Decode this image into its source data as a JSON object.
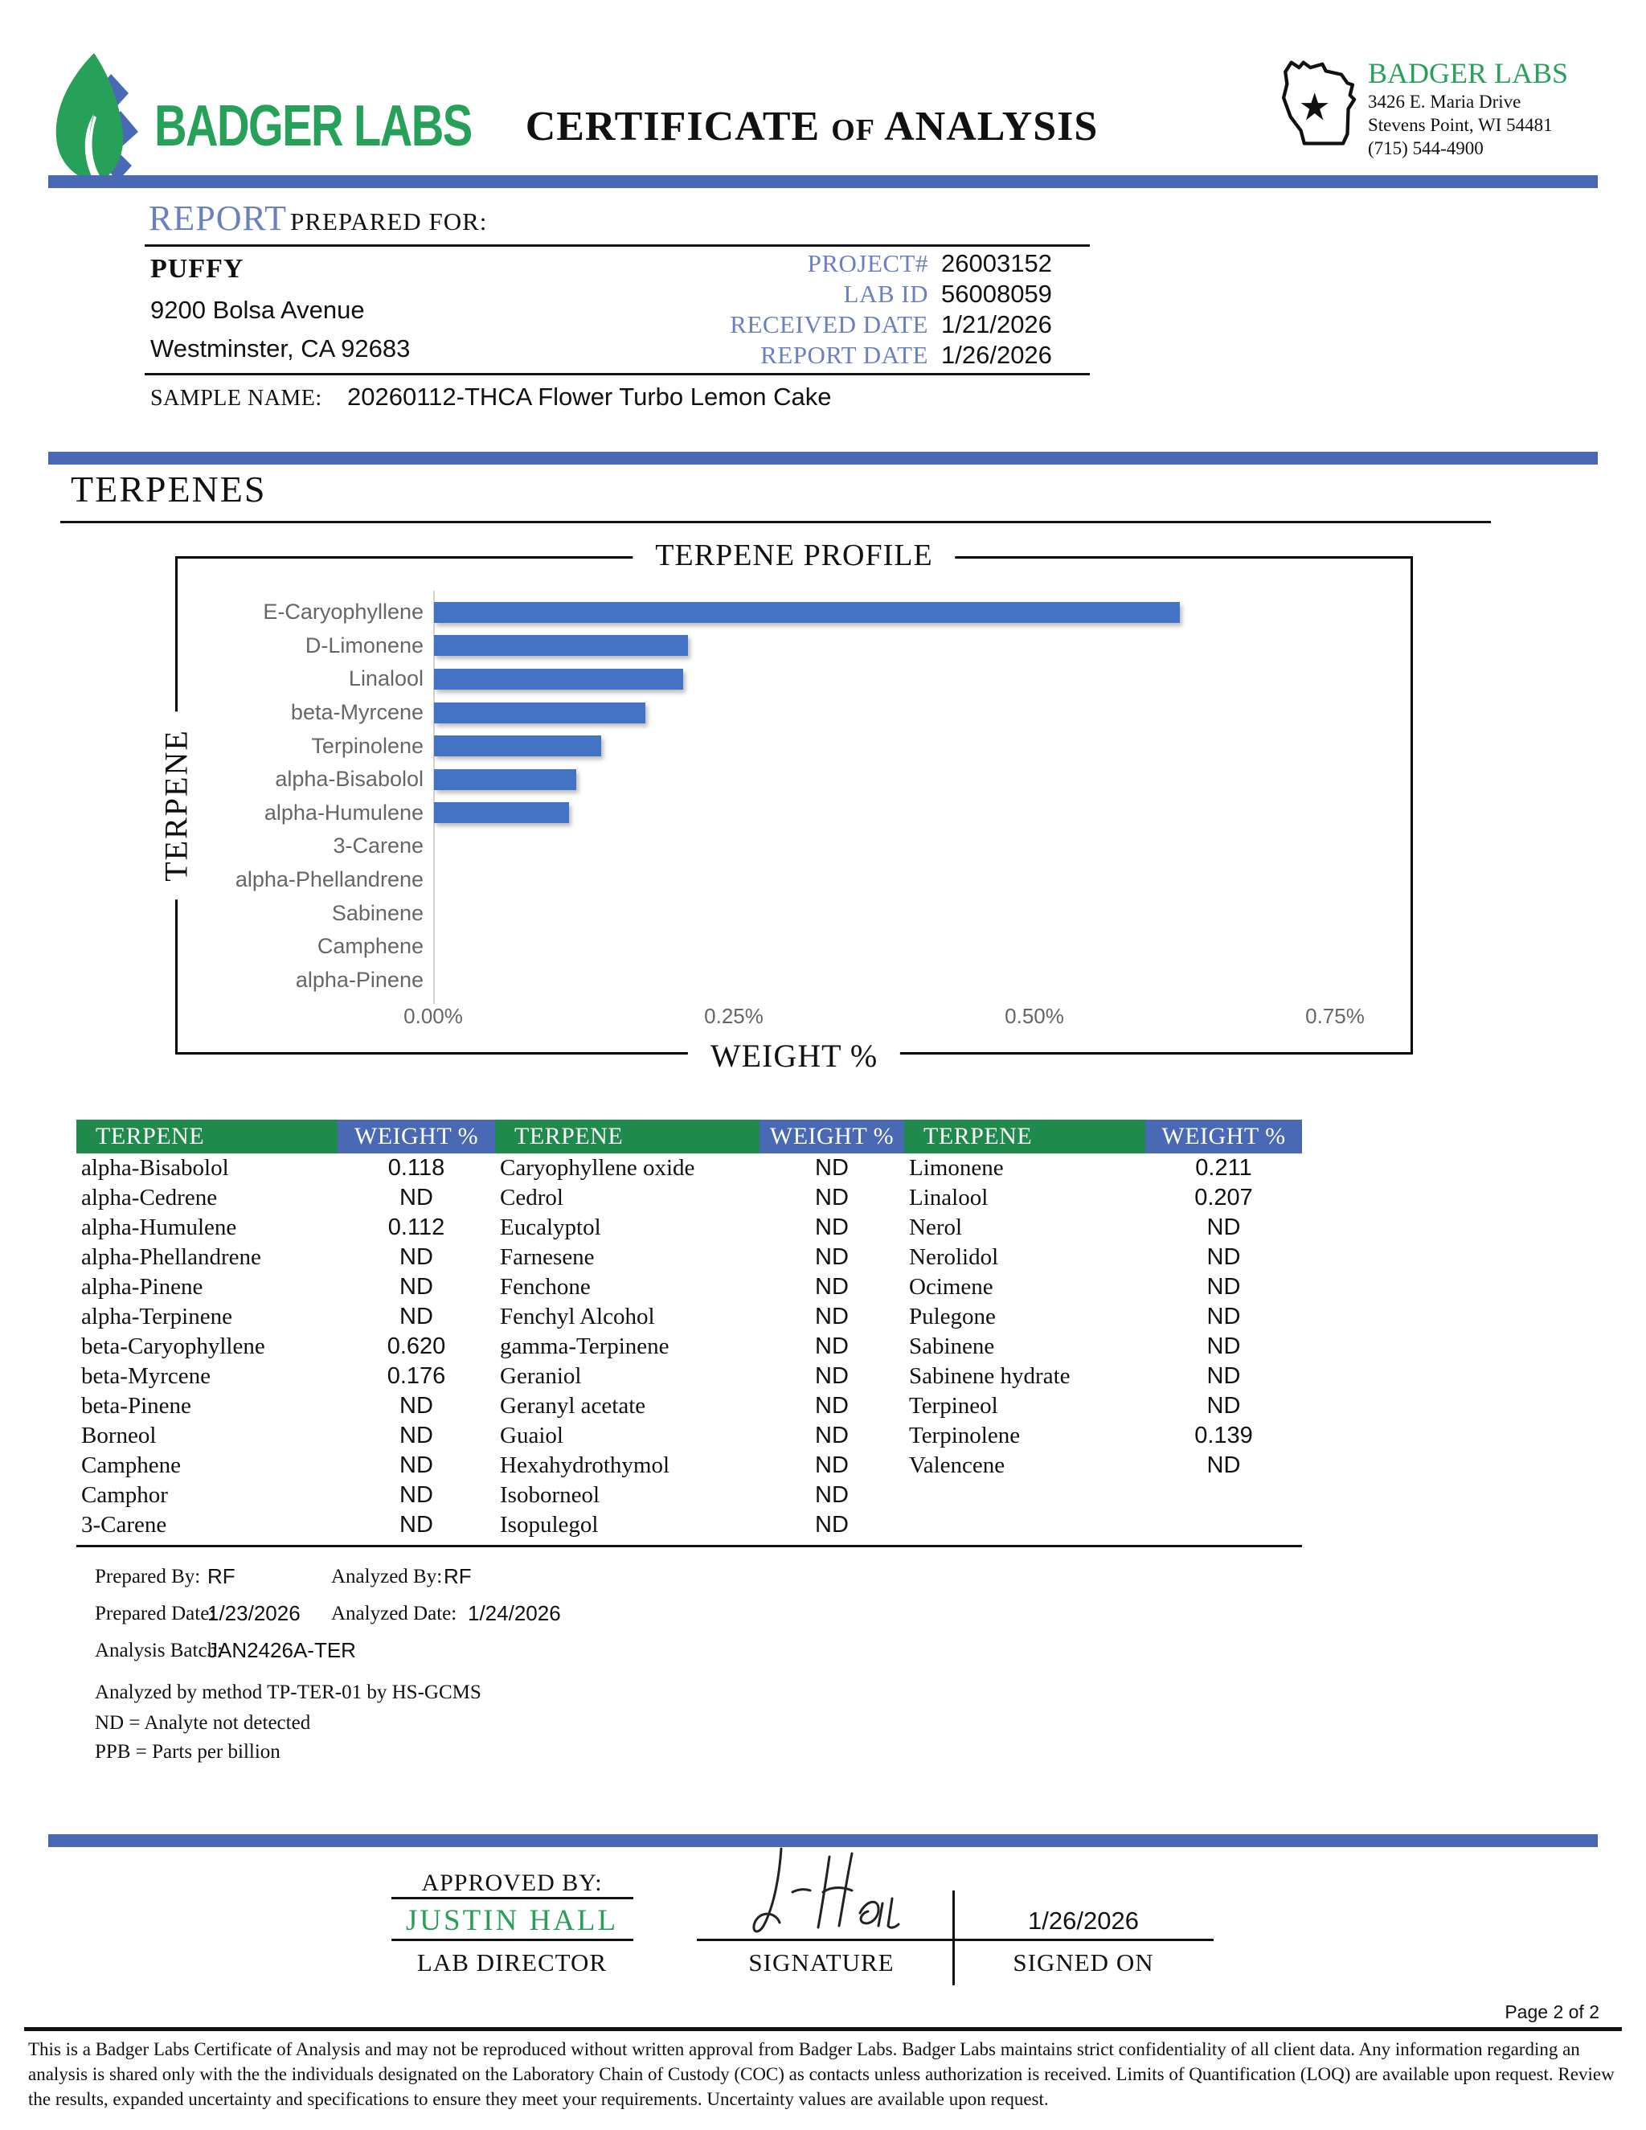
{
  "header": {
    "logo_text": "BADGER LABS",
    "title1": "CERTIFICATE",
    "title_of": "OF",
    "title2": "ANALYSIS",
    "lab_name": "BADGER LABS",
    "address_line1": "3426 E. Maria Drive",
    "address_line2": "Stevens Point, WI 54481",
    "phone": "(715) 544-4900"
  },
  "report": {
    "section_label": "REPORT",
    "section_sublabel": "PREPARED FOR:",
    "client_name": "PUFFY",
    "client_address1": "9200 Bolsa Avenue",
    "client_address2": "Westminster, CA 92683",
    "fields": [
      {
        "label": "PROJECT#",
        "value": "26003152"
      },
      {
        "label": "LAB ID",
        "value": "56008059"
      },
      {
        "label": "RECEIVED DATE",
        "value": "1/21/2026"
      },
      {
        "label": "REPORT DATE",
        "value": "1/26/2026"
      }
    ],
    "sample_name_label": "SAMPLE NAME:",
    "sample_name": "20260112-THCA Flower Turbo Lemon Cake"
  },
  "section_title": "TERPENES",
  "chart_data": {
    "type": "bar",
    "orientation": "horizontal",
    "title": "TERPENE PROFILE",
    "xlabel": "WEIGHT %",
    "ylabel": "TERPENE",
    "categories": [
      "E-Caryophyllene",
      "D-Limonene",
      "Linalool",
      "beta-Myrcene",
      "Terpinolene",
      "alpha-Bisabolol",
      "alpha-Humulene",
      "3-Carene",
      "alpha-Phellandrene",
      "Sabinene",
      "Camphene",
      "alpha-Pinene"
    ],
    "values": [
      0.62,
      0.211,
      0.207,
      0.176,
      0.139,
      0.118,
      0.112,
      0,
      0,
      0,
      0,
      0
    ],
    "xlim": [
      0,
      0.75
    ],
    "xticks": [
      "0.00%",
      "0.25%",
      "0.50%",
      "0.75%"
    ],
    "bar_color": "#4472c4",
    "legend": "none",
    "grid": "off"
  },
  "table": {
    "name_header": "TERPENE",
    "value_header": "WEIGHT %",
    "columns": [
      {
        "rows": [
          [
            "alpha-Bisabolol",
            "0.118"
          ],
          [
            "alpha-Cedrene",
            "ND"
          ],
          [
            "alpha-Humulene",
            "0.112"
          ],
          [
            "alpha-Phellandrene",
            "ND"
          ],
          [
            "alpha-Pinene",
            "ND"
          ],
          [
            "alpha-Terpinene",
            "ND"
          ],
          [
            "beta-Caryophyllene",
            "0.620"
          ],
          [
            "beta-Myrcene",
            "0.176"
          ],
          [
            "beta-Pinene",
            "ND"
          ],
          [
            "Borneol",
            "ND"
          ],
          [
            "Camphene",
            "ND"
          ],
          [
            "Camphor",
            "ND"
          ],
          [
            "3-Carene",
            "ND"
          ]
        ]
      },
      {
        "rows": [
          [
            "Caryophyllene oxide",
            "ND"
          ],
          [
            "Cedrol",
            "ND"
          ],
          [
            "Eucalyptol",
            "ND"
          ],
          [
            "Farnesene",
            "ND"
          ],
          [
            "Fenchone",
            "ND"
          ],
          [
            "Fenchyl Alcohol",
            "ND"
          ],
          [
            "gamma-Terpinene",
            "ND"
          ],
          [
            "Geraniol",
            "ND"
          ],
          [
            "Geranyl acetate",
            "ND"
          ],
          [
            "Guaiol",
            "ND"
          ],
          [
            "Hexahydrothymol",
            "ND"
          ],
          [
            "Isoborneol",
            "ND"
          ],
          [
            "Isopulegol",
            "ND"
          ]
        ]
      },
      {
        "rows": [
          [
            "Limonene",
            "0.211"
          ],
          [
            "Linalool",
            "0.207"
          ],
          [
            "Nerol",
            "ND"
          ],
          [
            "Nerolidol",
            "ND"
          ],
          [
            "Ocimene",
            "ND"
          ],
          [
            "Pulegone",
            "ND"
          ],
          [
            "Sabinene",
            "ND"
          ],
          [
            "Sabinene hydrate",
            "ND"
          ],
          [
            "Terpineol",
            "ND"
          ],
          [
            "Terpinolene",
            "0.139"
          ],
          [
            "Valencene",
            "ND"
          ]
        ]
      }
    ]
  },
  "notes": {
    "prepared_by_label": "Prepared By:",
    "prepared_by": "RF",
    "analyzed_by_label": "Analyzed By:",
    "analyzed_by": "RF",
    "prepared_date_label": "Prepared Date:",
    "prepared_date": "1/23/2026",
    "analyzed_date_label": "Analyzed Date:",
    "analyzed_date": "1/24/2026",
    "analysis_batch_label": "Analysis Batch:",
    "analysis_batch": "JAN2426A-TER",
    "method": "Analyzed by method TP-TER-01 by HS-GCMS",
    "nd_note": "ND = Analyte not detected",
    "ppb_note": "PPB = Parts per billion"
  },
  "approval": {
    "approved_by_label": "APPROVED BY:",
    "approver": "JUSTIN HALL",
    "approver_title": "LAB DIRECTOR",
    "signature_label": "SIGNATURE",
    "signed_on_label": "SIGNED ON",
    "signed_on": "1/26/2026"
  },
  "footer": {
    "page": "Page 2 of 2",
    "disclaimer": "This is a Badger Labs Certificate of Analysis and may not be reproduced without written approval from Badger Labs. Badger Labs maintains strict confidentiality of all client data. Any information regarding an analysis is shared only with the the individuals designated on the Laboratory Chain of Custody (COC) as contacts unless authorization is received. Limits of Quantification (LOQ) are available upon request. Review the results, expanded uncertainty and specifications to ensure they meet your requirements. Uncertainty values are available upon request."
  },
  "colors": {
    "divider_blue": "#4a69b5",
    "table_green": "#1f8a4b",
    "table_blue": "#4a69b5",
    "bar_blue": "#4472c4",
    "brand_green": "#27a05a",
    "label_blue": "#6b80bf"
  }
}
